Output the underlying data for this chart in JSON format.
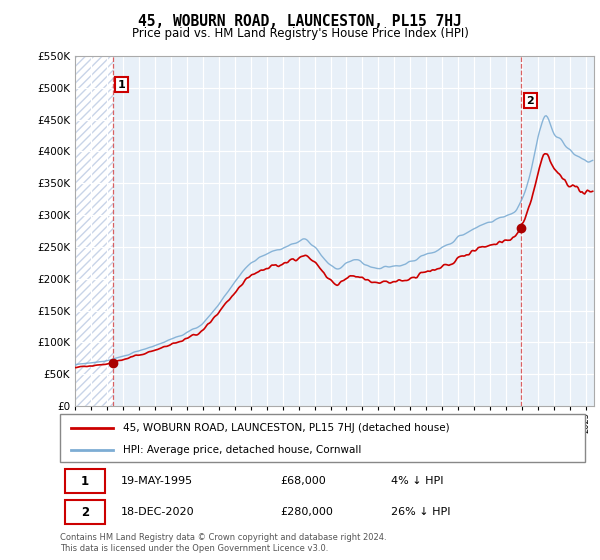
{
  "title": "45, WOBURN ROAD, LAUNCESTON, PL15 7HJ",
  "subtitle": "Price paid vs. HM Land Registry's House Price Index (HPI)",
  "legend_line1": "45, WOBURN ROAD, LAUNCESTON, PL15 7HJ (detached house)",
  "legend_line2": "HPI: Average price, detached house, Cornwall",
  "annotation1_label": "1",
  "annotation1_date": "19-MAY-1995",
  "annotation1_price": "£68,000",
  "annotation1_hpi": "4% ↓ HPI",
  "annotation2_label": "2",
  "annotation2_date": "18-DEC-2020",
  "annotation2_price": "£280,000",
  "annotation2_hpi": "26% ↓ HPI",
  "footer": "Contains HM Land Registry data © Crown copyright and database right 2024.\nThis data is licensed under the Open Government Licence v3.0.",
  "hpi_color": "#7dadd4",
  "price_color": "#cc0000",
  "marker_color": "#aa0000",
  "dashed_line_color": "#cc0000",
  "annotation_box_color": "#cc0000",
  "hatch_color": "#c8d4e8",
  "bg_color": "#dce8f5",
  "plot_bg_color": "#e8f0f8",
  "ylim": [
    0,
    550000
  ],
  "yticks": [
    0,
    50000,
    100000,
    150000,
    200000,
    250000,
    300000,
    350000,
    400000,
    450000,
    500000,
    550000
  ],
  "sale1_year": 1995.38,
  "sale1_price": 68000,
  "sale2_year": 2020.96,
  "sale2_price": 280000,
  "xmin": 1993,
  "xmax": 2025.5
}
